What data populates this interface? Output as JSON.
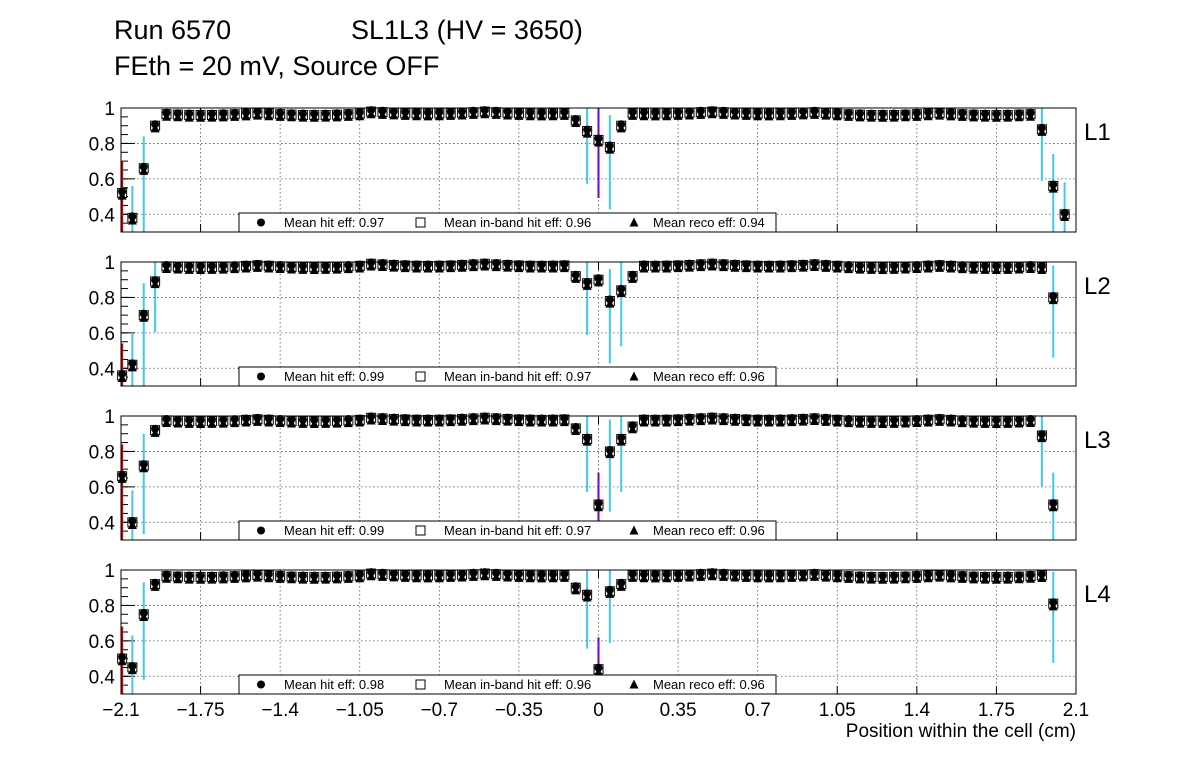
{
  "title": {
    "run": "Run 6570",
    "chamber": "SL1L3 (HV = 3650)",
    "settings": "FEth = 20 mV, Source OFF"
  },
  "colors": {
    "hit": "#000000",
    "inband": "#000000",
    "reco": "#000000",
    "err_red": "#cc0000",
    "err_purple": "#7a00cc",
    "err_cyan": "#41c8f0",
    "grid": "#555555"
  },
  "chart_data": {
    "type": "scatter",
    "xlabel": "Position within the cell (cm)",
    "xlim": [
      -2.1,
      2.1
    ],
    "ylim": [
      0.3,
      1.0
    ],
    "xticks": [
      "−2.1",
      "−1.75",
      "−1.4",
      "−1.05",
      "−0.7",
      "−0.35",
      "0",
      "0.35",
      "0.7",
      "1.05",
      "1.4",
      "1.75",
      "2.1"
    ],
    "yticks": [
      "0.4",
      "0.6",
      "0.8",
      "1"
    ],
    "grid": true,
    "legend_labels": {
      "hit": "Mean hit  eff:",
      "inband": "Mean in-band hit eff:",
      "reco": "Mean reco eff:"
    },
    "panels": [
      {
        "label": "L1",
        "legend_values": {
          "hit": "0.97",
          "inband": "0.96",
          "reco": "0.94"
        },
        "edge_left": [
          [
            -2.095,
            0.52
          ],
          [
            -2.05,
            0.38
          ],
          [
            -2.0,
            0.66
          ],
          [
            -1.95,
            0.9
          ]
        ],
        "edge_right": [
          [
            1.95,
            0.88
          ],
          [
            2.0,
            0.56
          ],
          [
            2.05,
            0.4
          ]
        ],
        "inner_start": -1.9,
        "inner_end": 1.9,
        "inner_step": 0.05,
        "plateau": 0.98,
        "dip": [
          [
            -0.1,
            0.93
          ],
          [
            -0.05,
            0.87
          ],
          [
            0.0,
            0.82
          ],
          [
            0.05,
            0.78
          ],
          [
            0.1,
            0.9
          ]
        ],
        "series": [
          {
            "name": "Mean hit eff",
            "mean": 0.97
          },
          {
            "name": "Mean in-band hit eff",
            "mean": 0.96
          },
          {
            "name": "Mean reco eff",
            "mean": 0.94
          }
        ]
      },
      {
        "label": "L2",
        "legend_values": {
          "hit": "0.99",
          "inband": "0.97",
          "reco": "0.96"
        },
        "edge_left": [
          [
            -2.095,
            0.36
          ],
          [
            -2.05,
            0.42
          ],
          [
            -2.0,
            0.7
          ],
          [
            -1.95,
            0.89
          ]
        ],
        "edge_right": [
          [
            1.95,
            0.97
          ],
          [
            2.0,
            0.8
          ]
        ],
        "inner_start": -1.9,
        "inner_end": 1.9,
        "inner_step": 0.05,
        "plateau": 0.99,
        "dip": [
          [
            -0.1,
            0.92
          ],
          [
            -0.05,
            0.88
          ],
          [
            0.0,
            0.9
          ],
          [
            0.05,
            0.78
          ],
          [
            0.1,
            0.84
          ],
          [
            0.15,
            0.92
          ]
        ],
        "series": [
          {
            "name": "Mean hit eff",
            "mean": 0.99
          },
          {
            "name": "Mean in-band hit eff",
            "mean": 0.97
          },
          {
            "name": "Mean reco eff",
            "mean": 0.96
          }
        ]
      },
      {
        "label": "L3",
        "legend_values": {
          "hit": "0.99",
          "inband": "0.97",
          "reco": "0.96"
        },
        "edge_left": [
          [
            -2.095,
            0.66
          ],
          [
            -2.05,
            0.4
          ],
          [
            -2.0,
            0.72
          ],
          [
            -1.95,
            0.92
          ]
        ],
        "edge_right": [
          [
            1.95,
            0.89
          ],
          [
            2.0,
            0.5
          ]
        ],
        "inner_start": -1.9,
        "inner_end": 1.9,
        "inner_step": 0.05,
        "plateau": 0.99,
        "dip": [
          [
            -0.1,
            0.93
          ],
          [
            -0.05,
            0.87
          ],
          [
            0.0,
            0.5
          ],
          [
            0.05,
            0.8
          ],
          [
            0.1,
            0.87
          ],
          [
            0.15,
            0.94
          ]
        ],
        "series": [
          {
            "name": "Mean hit eff",
            "mean": 0.99
          },
          {
            "name": "Mean in-band hit eff",
            "mean": 0.97
          },
          {
            "name": "Mean reco eff",
            "mean": 0.96
          }
        ]
      },
      {
        "label": "L4",
        "legend_values": {
          "hit": "0.98",
          "inband": "0.96",
          "reco": "0.96"
        },
        "edge_left": [
          [
            -2.095,
            0.5
          ],
          [
            -2.05,
            0.45
          ],
          [
            -2.0,
            0.75
          ],
          [
            -1.95,
            0.92
          ]
        ],
        "edge_right": [
          [
            1.95,
            0.97
          ],
          [
            2.0,
            0.81
          ]
        ],
        "inner_start": -1.9,
        "inner_end": 1.9,
        "inner_step": 0.05,
        "plateau": 0.98,
        "dip": [
          [
            -0.1,
            0.9
          ],
          [
            -0.05,
            0.86
          ],
          [
            0.0,
            0.44
          ],
          [
            0.05,
            0.88
          ],
          [
            0.1,
            0.92
          ]
        ],
        "series": [
          {
            "name": "Mean hit eff",
            "mean": 0.98
          },
          {
            "name": "Mean in-band hit eff",
            "mean": 0.96
          },
          {
            "name": "Mean reco eff",
            "mean": 0.96
          }
        ]
      }
    ]
  }
}
